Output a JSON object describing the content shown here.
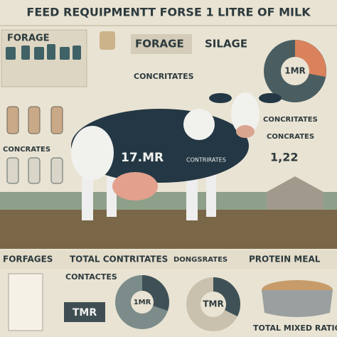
{
  "header": {
    "title": "FEED REQUIPMENTT FORSE 1 LITRE OF MILK"
  },
  "panels": {
    "forage_left": "FORAGE",
    "forage_top": "FORAGE",
    "silage": "SILAGE",
    "concentrates_top": "CONCRITATES",
    "pie_label": "1MR",
    "concentrates_right": "CONCRITATES",
    "concrates_right": "CONCRATES",
    "value_right": "1,22",
    "concrates_left": "CONCRATES"
  },
  "cow": {
    "label": "17.MR",
    "sub": "CONTRIRATES"
  },
  "footer_bar": [
    "FORFAGES",
    "TOTAL CONTRITATES",
    "DONGSRATES",
    "PROTEIN MEAL"
  ],
  "bottom": {
    "contactes": "CONTACTES",
    "tmr_left": "TMR",
    "pie_mid": "1MR",
    "pie_right": "TMR",
    "caption": "TOTAL MIXED RATIO"
  }
}
